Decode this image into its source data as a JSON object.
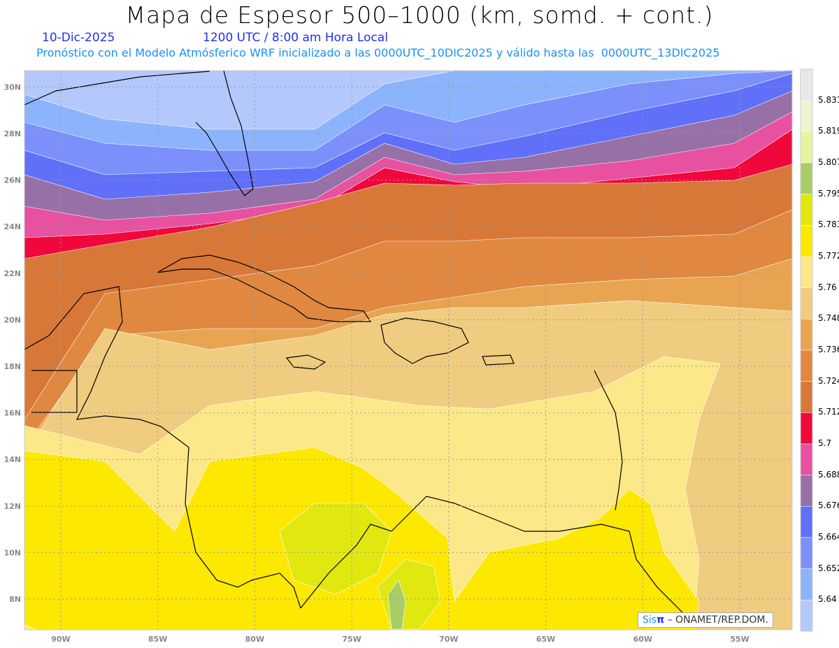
{
  "header": {
    "title": "Mapa de Espesor 500–1000 (km, somd. + cont.)",
    "date": "10-Dic-2025",
    "time": "1200 UTC / 8:00 am Hora Local",
    "subtitle": "Pronóstico con el Modelo Atmósferico WRF inicializado a las 0000UTC_10DIC2025 y válido hasta las  0000UTC_13DIC2025"
  },
  "map": {
    "lon_range": [
      -91.87,
      -52.3
    ],
    "lat_range": [
      6.68,
      30.7
    ],
    "lon_ticks": [
      {
        "v": -90,
        "label": "90W"
      },
      {
        "v": -85,
        "label": "85W"
      },
      {
        "v": -80,
        "label": "80W"
      },
      {
        "v": -75,
        "label": "75W"
      },
      {
        "v": -70,
        "label": "70W"
      },
      {
        "v": -65,
        "label": "65W"
      },
      {
        "v": -60,
        "label": "60W"
      },
      {
        "v": -55,
        "label": "55W"
      }
    ],
    "lat_ticks": [
      {
        "v": 8,
        "label": "8N"
      },
      {
        "v": 10,
        "label": "10N"
      },
      {
        "v": 12,
        "label": "12N"
      },
      {
        "v": 14,
        "label": "14N"
      },
      {
        "v": 16,
        "label": "16N"
      },
      {
        "v": 18,
        "label": "18N"
      },
      {
        "v": 20,
        "label": "20N"
      },
      {
        "v": 22,
        "label": "22N"
      },
      {
        "v": 24,
        "label": "24N"
      },
      {
        "v": 26,
        "label": "26N"
      },
      {
        "v": 28,
        "label": "28N"
      },
      {
        "v": 30,
        "label": "30N"
      }
    ]
  },
  "colorbar": {
    "colors": [
      "#e8e8e8",
      "#ecf4d4",
      "#e6f4a0",
      "#a8cc68",
      "#e0e810",
      "#fce800",
      "#fce888",
      "#f0cc80",
      "#e8a450",
      "#e08840",
      "#d87838",
      "#f0083c",
      "#e850a0",
      "#9870a8",
      "#6070f8",
      "#7c90fc",
      "#8cb4fc",
      "#b4c8fc"
    ],
    "labels": [
      "5.831",
      "5.819",
      "5.807",
      "5.795",
      "5.783",
      "5.772",
      "5.76",
      "5.748",
      "5.736",
      "5.724",
      "5.712",
      "5.7",
      "5.688",
      "5.676",
      "5.664",
      "5.652",
      "5.64"
    ]
  },
  "watermark": {
    "sis": "Sis",
    "pi": "π",
    "rest": "– ONAMET/REP.DOM."
  }
}
